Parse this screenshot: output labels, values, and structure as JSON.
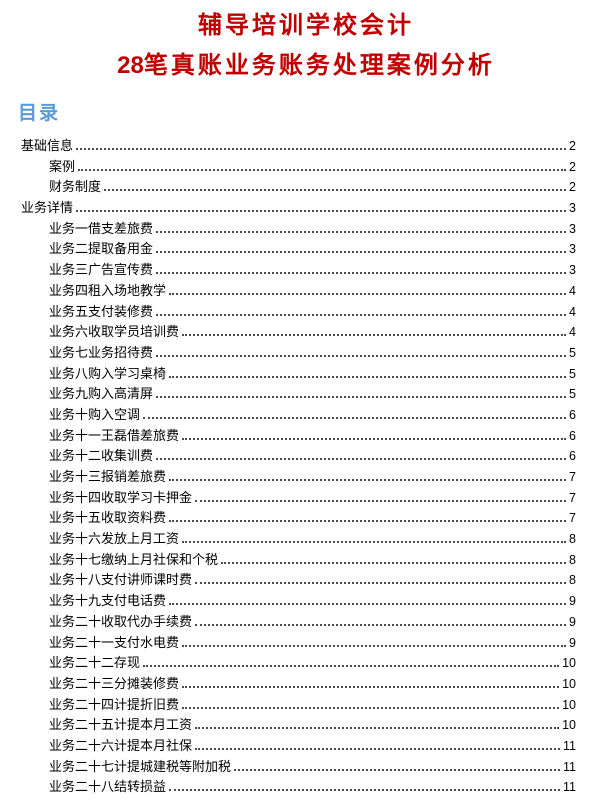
{
  "doc": {
    "title_line1": "辅导培训学校会计",
    "title_line2_num": "28",
    "title_line2_text": "笔真账业务账务处理案例分析",
    "toc_heading": "目录"
  },
  "colors": {
    "title_red": "#C00000",
    "heading_blue": "#5B9BD5",
    "body_text": "#000000"
  },
  "toc": {
    "entries": [
      {
        "label": "基础信息",
        "page": "2",
        "level": 1
      },
      {
        "label": "案例",
        "page": "2",
        "level": 2
      },
      {
        "label": "财务制度",
        "page": "2",
        "level": 2
      },
      {
        "label": "业务详情",
        "page": "3",
        "level": 1
      },
      {
        "label": "业务一借支差旅费",
        "page": "3",
        "level": 2
      },
      {
        "label": "业务二提取备用金",
        "page": "3",
        "level": 2
      },
      {
        "label": "业务三广告宣传费",
        "page": "3",
        "level": 2
      },
      {
        "label": "业务四租入场地教学",
        "page": "4",
        "level": 2
      },
      {
        "label": "业务五支付装修费",
        "page": "4",
        "level": 2
      },
      {
        "label": "业务六收取学员培训费",
        "page": "4",
        "level": 2
      },
      {
        "label": "业务七业务招待费",
        "page": "5",
        "level": 2
      },
      {
        "label": "业务八购入学习桌椅",
        "page": "5",
        "level": 2
      },
      {
        "label": "业务九购入高清屏",
        "page": "5",
        "level": 2
      },
      {
        "label": "业务十购入空调",
        "page": "6",
        "level": 2
      },
      {
        "label": "业务十一王磊借差旅费",
        "page": "6",
        "level": 2
      },
      {
        "label": "业务十二收集训费",
        "page": "6",
        "level": 2
      },
      {
        "label": "业务十三报销差旅费",
        "page": "7",
        "level": 2
      },
      {
        "label": "业务十四收取学习卡押金",
        "page": "7",
        "level": 2
      },
      {
        "label": "业务十五收取资料费",
        "page": "7",
        "level": 2
      },
      {
        "label": "业务十六发放上月工资",
        "page": "8",
        "level": 2
      },
      {
        "label": "业务十七缴纳上月社保和个税",
        "page": "8",
        "level": 2
      },
      {
        "label": "业务十八支付讲师课时费",
        "page": "8",
        "level": 2
      },
      {
        "label": "业务十九支付电话费",
        "page": "9",
        "level": 2
      },
      {
        "label": "业务二十收取代办手续费",
        "page": "9",
        "level": 2
      },
      {
        "label": "业务二十一支付水电费",
        "page": "9",
        "level": 2
      },
      {
        "label": "业务二十二存现",
        "page": "10",
        "level": 2
      },
      {
        "label": "业务二十三分摊装修费",
        "page": "10",
        "level": 2
      },
      {
        "label": "业务二十四计提折旧费",
        "page": "10",
        "level": 2
      },
      {
        "label": "业务二十五计提本月工资",
        "page": "10",
        "level": 2
      },
      {
        "label": "业务二十六计提本月社保",
        "page": "11",
        "level": 2
      },
      {
        "label": "业务二十七计提城建税等附加税",
        "page": "11",
        "level": 2
      },
      {
        "label": "业务二十八结转损益",
        "page": "11",
        "level": 2
      }
    ]
  }
}
